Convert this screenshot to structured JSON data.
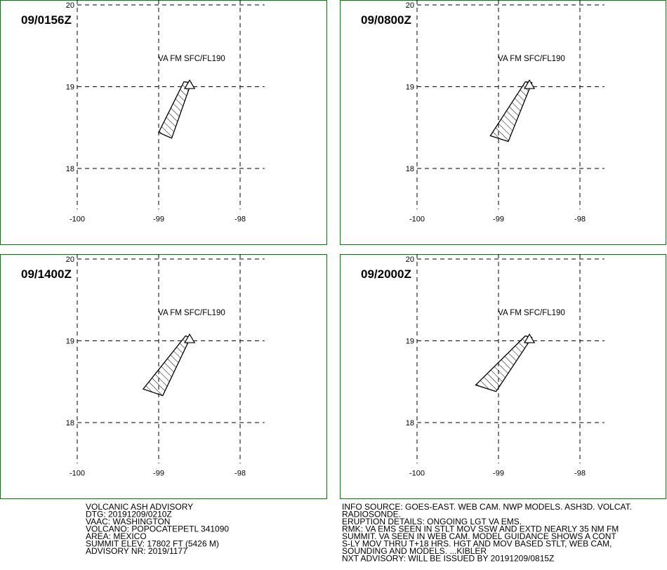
{
  "map": {
    "xlim": [
      -100,
      -97.7
    ],
    "ylim": [
      17.5,
      20
    ],
    "xticks": [
      -100,
      -99,
      -98
    ],
    "yticks": [
      18,
      19,
      20
    ],
    "volcano": {
      "lon": -98.62,
      "lat": 19.02
    }
  },
  "panels": [
    {
      "time": "09/0156Z",
      "label": "VA FM SFC/FL190",
      "polygon": {
        "lon": [
          -98.69,
          -98.6,
          -98.84,
          -99.0
        ],
        "lat": [
          19.06,
          19.05,
          18.37,
          18.44
        ]
      }
    },
    {
      "time": "09/0800Z",
      "label": "VA FM SFC/FL190",
      "polygon": {
        "lon": [
          -98.67,
          -98.59,
          -98.88,
          -99.1
        ],
        "lat": [
          19.06,
          19.05,
          18.33,
          18.4
        ]
      }
    },
    {
      "time": "09/1400Z",
      "label": "VA FM SFC/FL190",
      "polygon": {
        "lon": [
          -98.67,
          -98.61,
          -98.95,
          -99.19
        ],
        "lat": [
          19.06,
          19.04,
          18.33,
          18.41
        ]
      }
    },
    {
      "time": "09/2000Z",
      "label": "VA FM SFC/FL190",
      "polygon": {
        "lon": [
          -98.67,
          -98.59,
          -99.03,
          -99.28
        ],
        "lat": [
          19.06,
          19.04,
          18.38,
          18.46
        ]
      }
    }
  ],
  "advisory_left": [
    "VOLCANIC ASH ADVISORY",
    "DTG: 20191209/0210Z",
    "VAAC: WASHINGTON",
    "VOLCANO: POPOCATEPETL 341090",
    "AREA: MEXICO",
    "SUMMIT ELEV: 17802 FT (5426 M)",
    "ADVISORY NR: 2019/1177"
  ],
  "advisory_right": [
    "INFO SOURCE: GOES-EAST. WEB CAM. NWP MODELS. ASH3D. VOLCAT.",
    "RADIOSONDE.",
    "ERUPTION DETAILS: ONGOING LGT VA EMS.",
    "RMK: VA EMS SEEN IN STLT MOV SSW AND EXTD NEARLY 35 NM FM",
    "SUMMIT. VA SEEN IN WEB CAM. MODEL GUIDANCE SHOWS A CONT",
    "S-LY MOV THRU T+18 HRS. HGT AND MOV BASED STLT, WEB CAM,",
    "SOUNDING AND MODELS. ...KIBLER",
    "NXT ADVISORY: WILL BE ISSUED BY 20191209/0815Z"
  ]
}
